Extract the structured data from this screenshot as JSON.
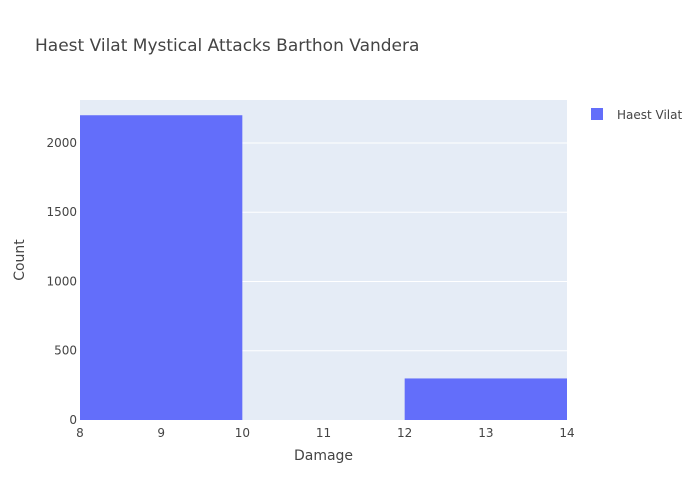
{
  "colors": {
    "plot_background": "#E5ECF6",
    "gridline": "#FFFFFF",
    "bar": "#636EFA",
    "text": "#444444"
  },
  "chart_data": {
    "type": "bar",
    "title": "Haest Vilat Mystical Attacks Barthon Vandera",
    "xlabel": "Damage",
    "ylabel": "Count",
    "xlim": [
      8,
      14
    ],
    "ylim": [
      0,
      2310
    ],
    "x_ticks": [
      8,
      9,
      10,
      11,
      12,
      13,
      14
    ],
    "y_ticks": [
      0,
      500,
      1000,
      1500,
      2000
    ],
    "grid": true,
    "legend_position": "top-right",
    "series": [
      {
        "name": "Haest Vilat",
        "bins": [
          {
            "start": 8,
            "end": 10,
            "count": 2200
          },
          {
            "start": 10,
            "end": 12,
            "count": 0
          },
          {
            "start": 12,
            "end": 14,
            "count": 300
          }
        ]
      }
    ]
  }
}
